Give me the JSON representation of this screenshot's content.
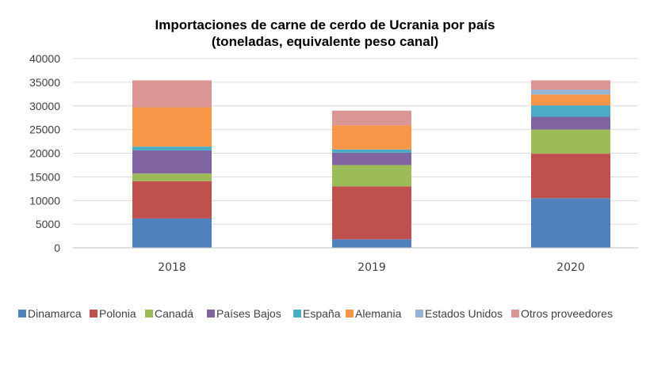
{
  "chart_data": {
    "type": "bar",
    "stacked": true,
    "title": "Importaciones de carne de cerdo de Ucrania por país",
    "subtitle": "(toneladas, equivalente peso canal)",
    "xlabel": "",
    "ylabel": "",
    "ylim": [
      0,
      40000
    ],
    "y_ticks": [
      "0",
      "5000",
      "10000",
      "15000",
      "20000",
      "25000",
      "30000",
      "35000",
      "40000"
    ],
    "categories": [
      "2018",
      "2019",
      "2020"
    ],
    "grid": true,
    "legend_position": "bottom",
    "series": [
      {
        "name": "Dinamarca",
        "color": "#4f81bd",
        "values": [
          6200,
          1800,
          10500
        ]
      },
      {
        "name": "Polonia",
        "color": "#c0504d",
        "values": [
          7900,
          11200,
          9400
        ]
      },
      {
        "name": "Canadá",
        "color": "#9bbb59",
        "values": [
          1600,
          4500,
          5100
        ]
      },
      {
        "name": "Países Bajos",
        "color": "#8064a2",
        "values": [
          4900,
          2600,
          2700
        ]
      },
      {
        "name": "España",
        "color": "#4bacc6",
        "values": [
          800,
          700,
          2400
        ]
      },
      {
        "name": "Alemania",
        "color": "#f79646",
        "values": [
          8300,
          5100,
          2300
        ]
      },
      {
        "name": "Estados Unidos",
        "color": "#95b3d7",
        "values": [
          0,
          0,
          1000
        ]
      },
      {
        "name": "Otros proveedores",
        "color": "#d99694",
        "values": [
          5700,
          3100,
          2000
        ]
      }
    ]
  }
}
